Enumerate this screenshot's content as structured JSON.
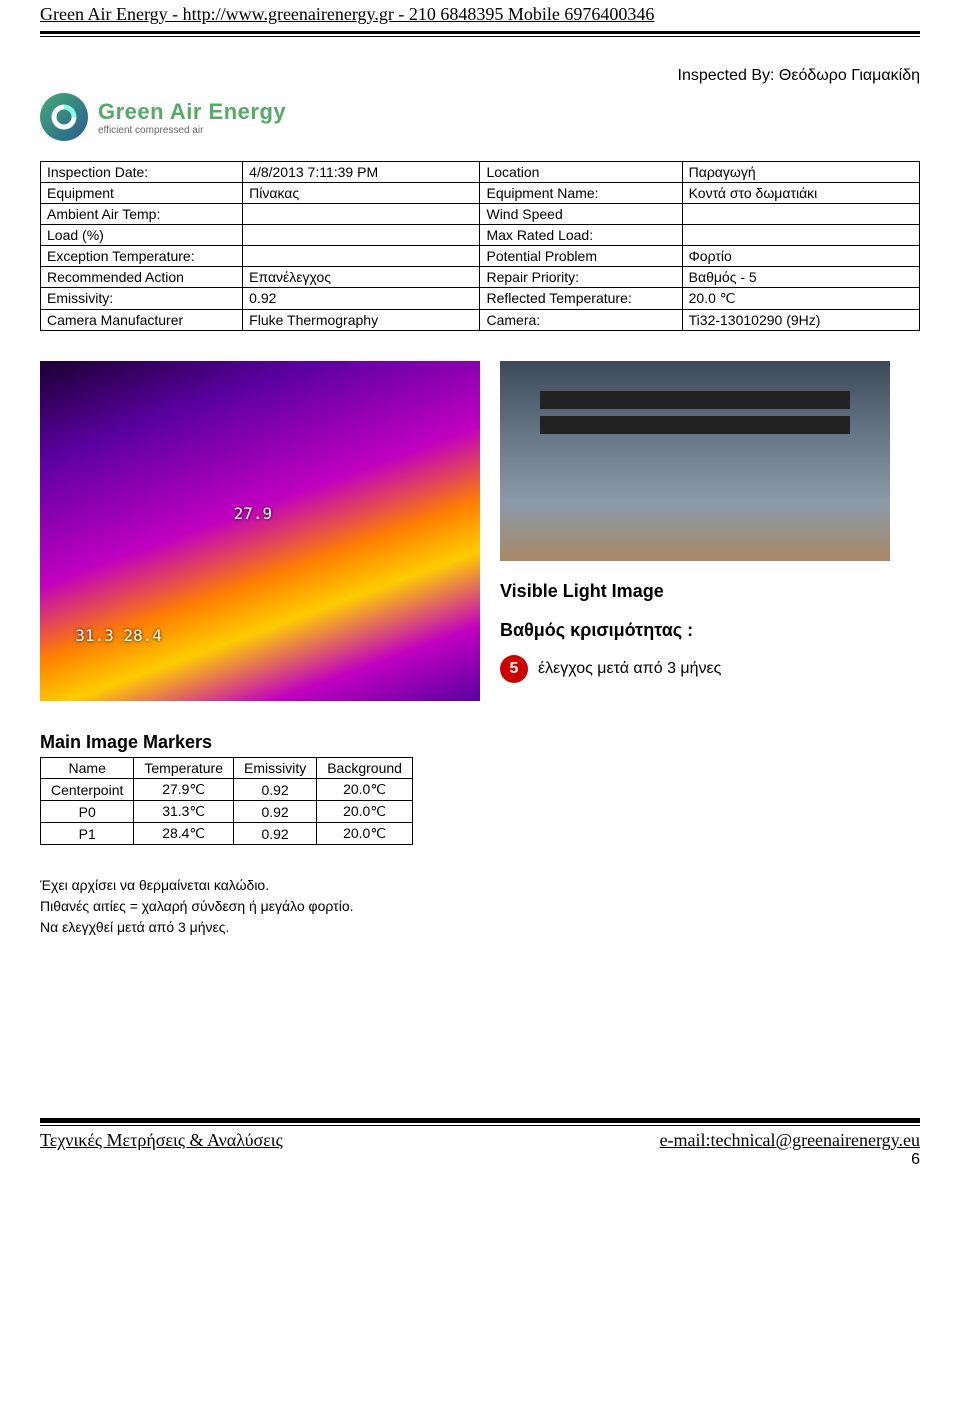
{
  "header": {
    "text": "Green Air Energy   -   http://www.greenairenergy.gr   -   210 6848395  Mobile 6976400346"
  },
  "inspected_by": "Inspected By: Θεόδωρο Γιαμακίδη",
  "logo": {
    "brand": "Green Air Energy",
    "tagline": "efficient compressed air"
  },
  "spec_rows": [
    [
      "Inspection Date:",
      "4/8/2013 7:11:39 PM",
      "Location",
      "Παραγωγή"
    ],
    [
      "Equipment",
      "Πίνακας",
      "Equipment Name:",
      "Κοντά στο δωματιάκι"
    ],
    [
      "Ambient Air Temp:",
      "",
      "Wind Speed",
      ""
    ],
    [
      "Load (%)",
      "",
      "Max Rated Load:",
      ""
    ],
    [
      "Exception Temperature:",
      "",
      "Potential Problem",
      "Φορτίο"
    ],
    [
      "Recommended Action",
      "Επανέλεγχος",
      "Repair Priority:",
      "Βαθμός - 5"
    ],
    [
      "Emissivity:",
      "0.92",
      "Reflected Temperature:",
      "20.0 ℃"
    ],
    [
      "Camera Manufacturer",
      "Fluke Thermography",
      "Camera:",
      "Ti32-13010290 (9Hz)"
    ]
  ],
  "thermal_marker_1": "27.9",
  "thermal_marker_2": "31.3 28.4",
  "right": {
    "visible_light": "Visible Light Image",
    "bathmos": "Βαθμός κρισιμότητας :",
    "badge": "5",
    "check_text": "έλεγχος μετά από 3 μήνες"
  },
  "ir_label": "IR001005.IS2",
  "markers": {
    "title": "Main Image Markers",
    "columns": [
      "Name",
      "Temperature",
      "Emissivity",
      "Background"
    ],
    "rows": [
      [
        "Centerpoint",
        "27.9℃",
        "0.92",
        "20.0℃"
      ],
      [
        "P0",
        "31.3℃",
        "0.92",
        "20.0℃"
      ],
      [
        "P1",
        "28.4℃",
        "0.92",
        "20.0℃"
      ]
    ]
  },
  "notes": [
    "Έχει αρχίσει να θερμαίνεται καλώδιο.",
    "Πιθανές αιτίες = χαλαρή σύνδεση ή μεγάλο φορτίο.",
    "Να ελεγχθεί μετά από 3 μήνες."
  ],
  "footer": {
    "left": "Τεχνικές Μετρήσεις & Αναλύσεις",
    "right": "e-mail:technical@greenairenergy.eu",
    "page": "6"
  },
  "colors": {
    "badge_bg": "#cc0000",
    "underline": "#000000"
  }
}
